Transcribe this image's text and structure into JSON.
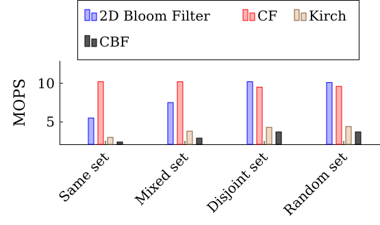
{
  "chart_data": {
    "type": "bar",
    "title": "",
    "xlabel": "",
    "ylabel": "MOPS",
    "ylim": [
      2.1,
      12.9
    ],
    "yticks": [
      5,
      10
    ],
    "categories": [
      "Same set",
      "Mixed set",
      "Disjoint set",
      "Random set"
    ],
    "series": [
      {
        "name": "2D Bloom Filter",
        "color": "#0000ff",
        "fill": "#b3b3ff",
        "values": [
          5.5,
          7.5,
          10.2,
          10.1
        ]
      },
      {
        "name": "CF",
        "color": "#ff0000",
        "fill": "#ffb3b3",
        "values": [
          10.2,
          10.2,
          9.5,
          9.6
        ]
      },
      {
        "name": "Kirch",
        "color": "#7a5c3a",
        "fill": "#f0d8c2",
        "values": [
          3.0,
          3.8,
          4.3,
          4.4
        ]
      },
      {
        "name": "CBF",
        "color": "#000000",
        "fill": "#555555",
        "values": [
          2.4,
          2.9,
          3.7,
          3.7
        ]
      }
    ],
    "legend_position": "top",
    "grid": false
  }
}
